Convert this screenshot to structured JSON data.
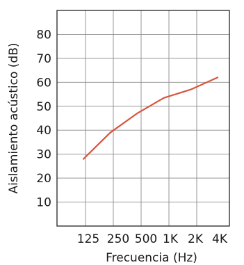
{
  "chart_data": {
    "type": "line",
    "title": "",
    "xlabel": "Frecuencia (Hz)",
    "ylabel": "Aislamiento acústico (dB)",
    "categories": [
      "125",
      "250",
      "500",
      "1K",
      "2K",
      "4K"
    ],
    "yticks": [
      10,
      20,
      30,
      40,
      50,
      60,
      70,
      80
    ],
    "ylim": [
      0,
      90
    ],
    "grid": true,
    "series": [
      {
        "values": [
          28,
          39,
          47,
          53.5,
          57,
          62
        ],
        "color": "#d9533e"
      }
    ]
  }
}
